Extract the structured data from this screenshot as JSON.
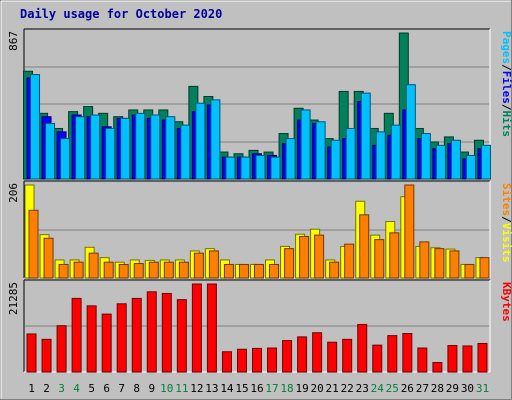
{
  "chart_data": {
    "type": "bar",
    "title": "Daily usage for October 2020",
    "days": [
      "1",
      "2",
      "3",
      "4",
      "5",
      "6",
      "7",
      "8",
      "9",
      "10",
      "11",
      "12",
      "13",
      "14",
      "15",
      "16",
      "17",
      "18",
      "19",
      "20",
      "21",
      "22",
      "23",
      "24",
      "25",
      "26",
      "27",
      "28",
      "29",
      "30",
      "31"
    ],
    "weekend_days": [
      "3",
      "4",
      "10",
      "11",
      "17",
      "18",
      "24",
      "25",
      "31"
    ],
    "colors": {
      "hits": "#00805c",
      "files": "#0000ff",
      "pages": "#00c0ff",
      "visits": "#ffff00",
      "sites": "#ff8000",
      "kbytes": "#ff0000",
      "title": "#0000a0",
      "weekday_tick": "#000000",
      "weekend_tick": "#008040"
    },
    "panels": [
      {
        "name": "hits-files-pages",
        "ymax_label": "867",
        "ymax": 867,
        "side_label": [
          "Pages",
          "/",
          "Files",
          "/",
          "Hits"
        ],
        "side_colors": [
          "#00c0ff",
          "#000000",
          "#0000ff",
          "#000000",
          "#00805c"
        ],
        "series": [
          {
            "name": "Hits",
            "color": "#00805c",
            "values": [
              640,
              390,
              300,
              400,
              430,
              390,
              370,
              410,
              410,
              410,
              340,
              550,
              490,
              160,
              150,
              170,
              160,
              270,
              420,
              350,
              240,
              520,
              520,
              300,
              390,
              867,
              300,
              220,
              250,
              160,
              230
            ]
          },
          {
            "name": "Files",
            "color": "#0000ff",
            "values": [
              600,
              370,
              280,
              380,
              370,
              310,
              360,
              380,
              360,
              350,
              300,
              400,
              440,
              130,
              130,
              150,
              140,
              210,
              350,
              330,
              190,
              240,
              460,
              200,
              260,
              410,
              240,
              180,
              210,
              120,
              180
            ]
          },
          {
            "name": "Pages",
            "color": "#00c0ff",
            "values": [
              620,
              330,
              240,
              370,
              380,
              300,
              360,
              390,
              380,
              370,
              320,
              450,
              470,
              130,
              130,
              140,
              130,
              240,
              410,
              340,
              230,
              300,
              510,
              280,
              320,
              560,
              270,
              200,
              230,
              140,
              200
            ]
          }
        ]
      },
      {
        "name": "visits-sites",
        "ymax_label": "206",
        "ymax": 206,
        "side_label": [
          "Sites",
          "/",
          "Visits"
        ],
        "side_colors": [
          "#ff8000",
          "#000000",
          "#ffff00"
        ],
        "series": [
          {
            "name": "Visits",
            "color": "#ffff00",
            "values": [
              206,
              96,
              40,
              40,
              68,
              45,
              35,
              40,
              39,
              40,
              40,
              60,
              65,
              40,
              30,
              30,
              40,
              70,
              97,
              108,
              40,
              70,
              170,
              95,
              125,
              180,
              70,
              67,
              64,
              30,
              45
            ]
          },
          {
            "name": "Sites",
            "color": "#ff8000",
            "values": [
              150,
              88,
              30,
              35,
              55,
              35,
              30,
              32,
              35,
              35,
              35,
              55,
              60,
              30,
              30,
              30,
              30,
              65,
              92,
              95,
              35,
              75,
              140,
              85,
              100,
              206,
              80,
              65,
              60,
              30,
              45
            ]
          }
        ]
      },
      {
        "name": "kbytes",
        "ymax_label": "21285",
        "ymax": 21285,
        "side_label": [
          "KBytes"
        ],
        "side_colors": [
          "#ff0000"
        ],
        "series": [
          {
            "name": "KBytes",
            "color": "#ff0000",
            "values": [
              9200,
              7900,
              11200,
              17800,
              16000,
              14000,
              16500,
              17800,
              19400,
              19000,
              17500,
              21285,
              21285,
              4900,
              5500,
              5700,
              5800,
              7600,
              8500,
              9500,
              7200,
              7900,
              11500,
              6500,
              8800,
              9300,
              5800,
              2300,
              6400,
              6300,
              6900
            ]
          }
        ]
      }
    ]
  }
}
